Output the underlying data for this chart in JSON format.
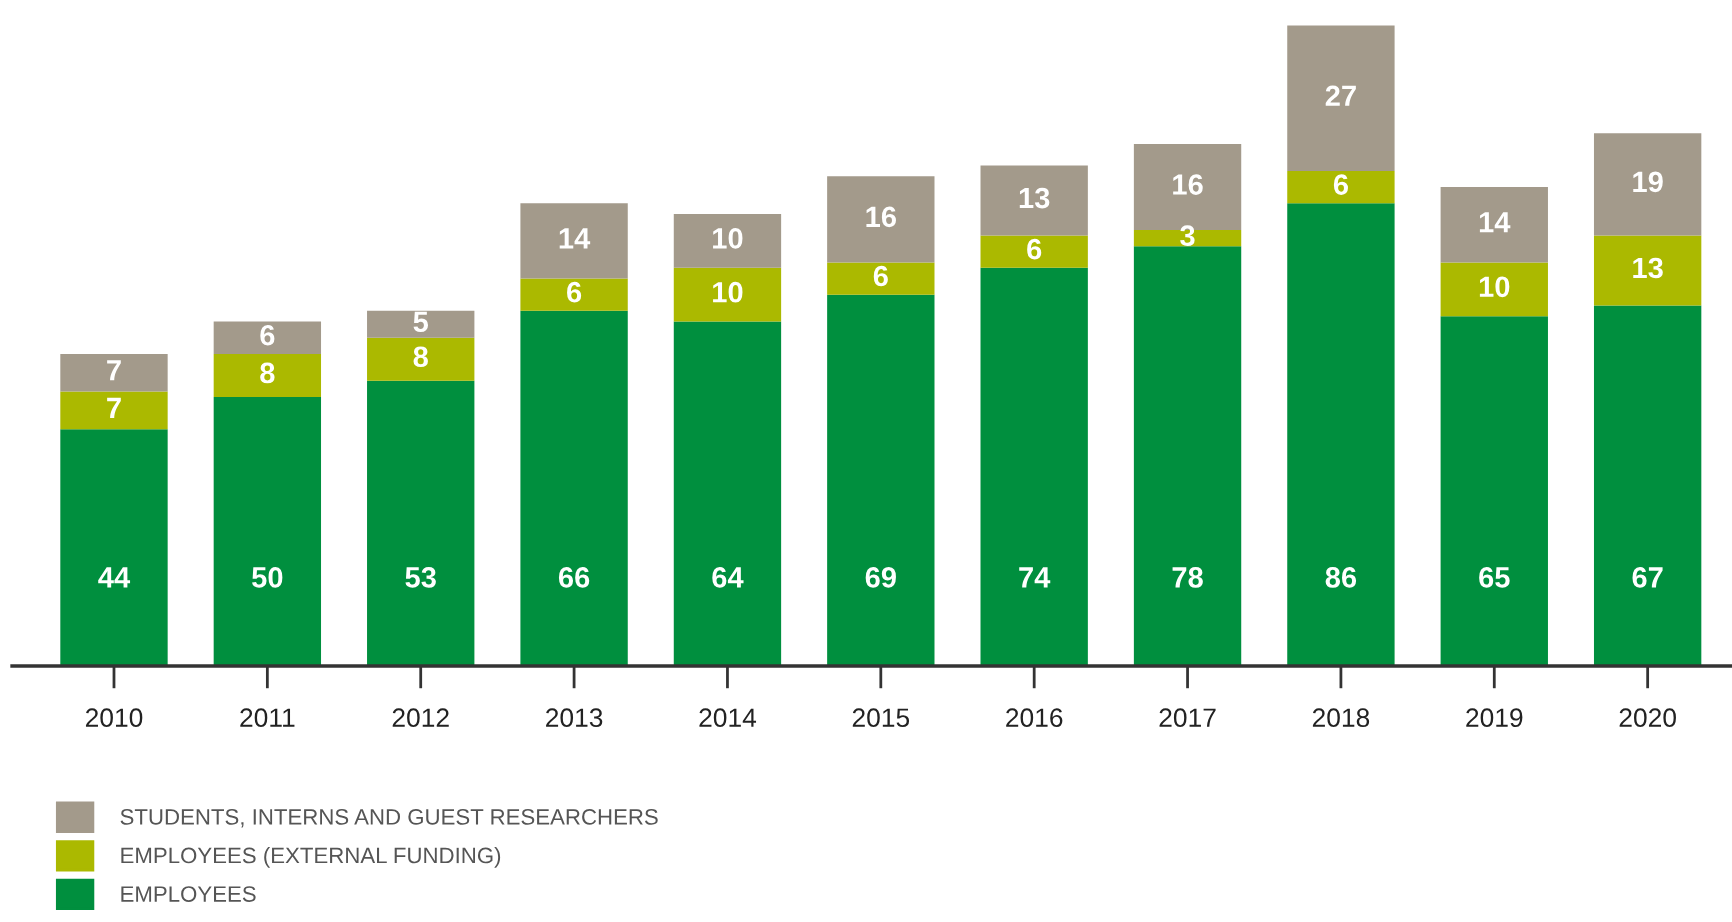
{
  "chart_data": {
    "type": "bar",
    "stacked": true,
    "data_labels": true,
    "legend": "bottom left",
    "categories": [
      "2010",
      "2011",
      "2012",
      "2013",
      "2014",
      "2015",
      "2016",
      "2017",
      "2018",
      "2019",
      "2020"
    ],
    "series": [
      {
        "name": "EMPLOYEES",
        "color": "#008f3e",
        "values": [
          44,
          50,
          53,
          66,
          64,
          69,
          74,
          78,
          86,
          65,
          67
        ]
      },
      {
        "name": "EMPLOYEES (EXTERNAL FUNDING)",
        "color": "#abb900",
        "values": [
          7,
          8,
          8,
          6,
          10,
          6,
          6,
          3,
          6,
          10,
          13
        ]
      },
      {
        "name": "STUDENTS, INTERNS AND GUEST RESEARCHERS",
        "color": "#a39a8b",
        "values": [
          7,
          6,
          5,
          14,
          10,
          16,
          13,
          16,
          27,
          14,
          19
        ]
      }
    ]
  }
}
